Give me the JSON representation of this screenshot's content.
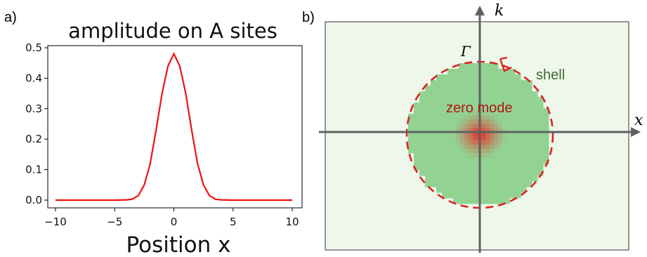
{
  "chart_data": [
    {
      "panel": "a)",
      "type": "line",
      "title": "amplitude on A sites",
      "xlabel": "Position x",
      "ylabel": "",
      "xlim": [
        -10,
        10
      ],
      "ylim": [
        0,
        0.5
      ],
      "x_ticks": [
        "−10",
        "−5",
        "0",
        "5",
        "10"
      ],
      "y_ticks": [
        "0.0",
        "0.1",
        "0.2",
        "0.3",
        "0.4",
        "0.5"
      ],
      "grid": false,
      "series": [
        {
          "color": "#ee1111",
          "x": [
            -10,
            -5,
            -4,
            -3.5,
            -3,
            -2.5,
            -2,
            -1.5,
            -1,
            -0.5,
            0,
            0.5,
            1,
            1.5,
            2,
            2.5,
            3,
            3.5,
            4,
            5,
            10
          ],
          "y": [
            0,
            0,
            0.001,
            0.003,
            0.015,
            0.05,
            0.12,
            0.23,
            0.35,
            0.44,
            0.48,
            0.44,
            0.35,
            0.23,
            0.12,
            0.05,
            0.015,
            0.003,
            0.001,
            0,
            0
          ]
        }
      ]
    },
    {
      "panel": "b)",
      "type": "heatmap",
      "x_axis_label": "x",
      "y_axis_label": "k",
      "point_label": "Γ",
      "annotations": [
        "shell",
        "zero mode"
      ],
      "colors": {
        "background": "#eef7ea",
        "disk": "#92d393",
        "zero_mode": "#e23b33",
        "boundary": "#dd2222",
        "axes": "#606060",
        "shell_text": "#3b6b2e",
        "zero_mode_text": "#b41414"
      }
    }
  ]
}
